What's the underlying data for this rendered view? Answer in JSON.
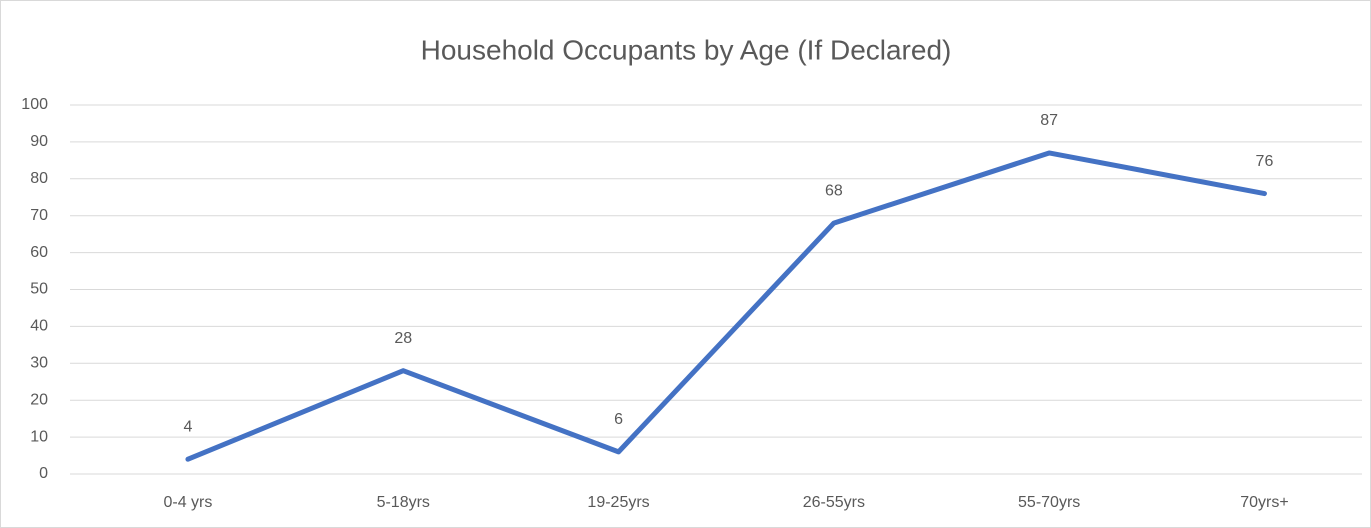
{
  "chart_data": {
    "type": "line",
    "title": "Household Occupants by Age (If Declared)",
    "categories": [
      "0-4 yrs",
      "5-18yrs",
      "19-25yrs",
      "26-55yrs",
      "55-70yrs",
      "70yrs+"
    ],
    "values": [
      4,
      28,
      6,
      68,
      87,
      76
    ],
    "color": "#4472c4",
    "ylim": [
      0,
      100
    ],
    "yticks": [
      0,
      10,
      20,
      30,
      40,
      50,
      60,
      70,
      80,
      90,
      100
    ],
    "grid": true,
    "data_labels": true
  }
}
